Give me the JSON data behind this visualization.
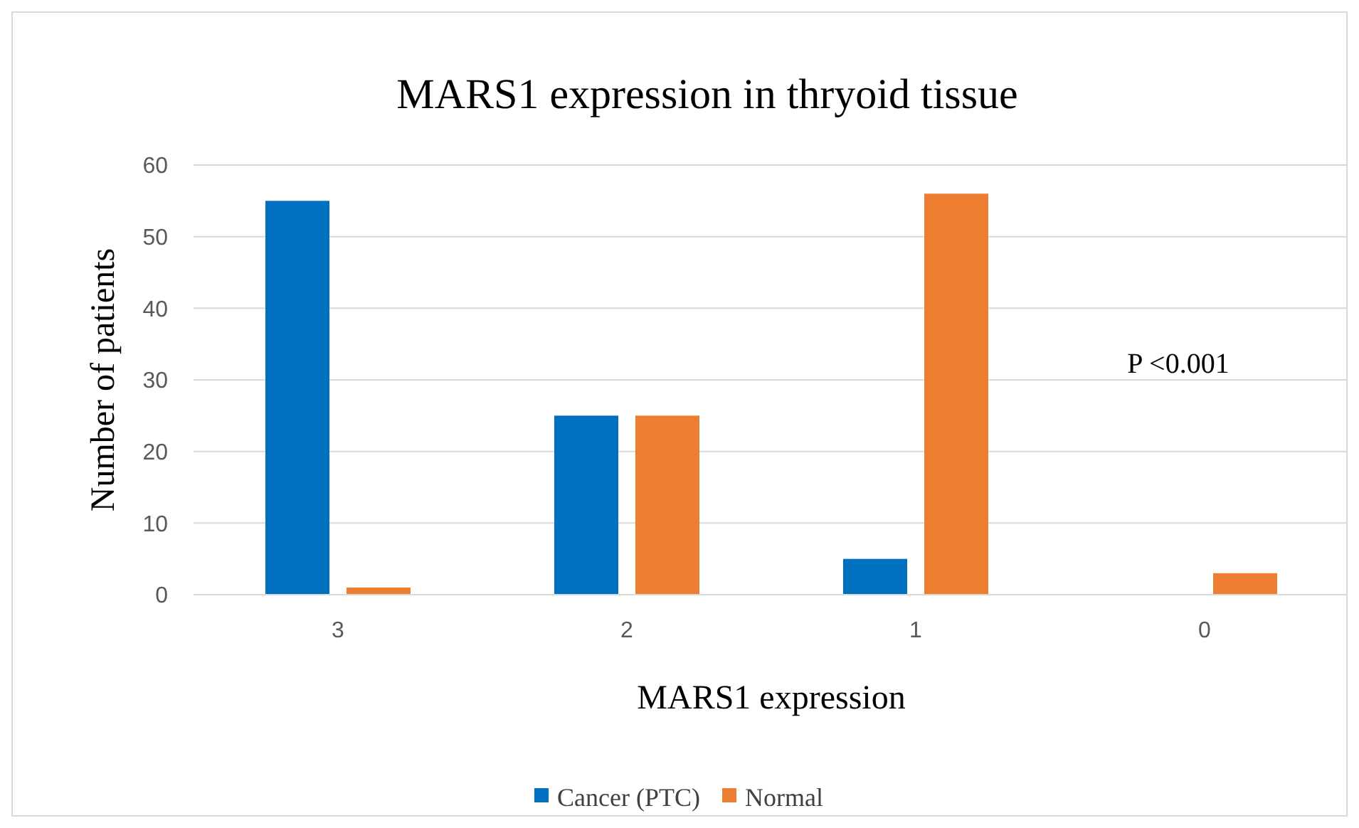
{
  "chart_data": {
    "type": "bar",
    "title": "MARS1 expression in thryoid tissue",
    "xlabel": "MARS1 expression",
    "ylabel": "Number of patients",
    "categories": [
      "3",
      "2",
      "1",
      "0"
    ],
    "series": [
      {
        "name": "Cancer (PTC)",
        "color": "#0070c0",
        "values": [
          55,
          25,
          5,
          0
        ]
      },
      {
        "name": "Normal",
        "color": "#ed7d31",
        "values": [
          1,
          25,
          56,
          3
        ]
      }
    ],
    "ylim": [
      0,
      60
    ],
    "yticks": [
      0,
      10,
      20,
      30,
      40,
      50,
      60
    ],
    "grid": "y",
    "legend": "bottom",
    "annotations": [
      "P <0.001"
    ]
  }
}
